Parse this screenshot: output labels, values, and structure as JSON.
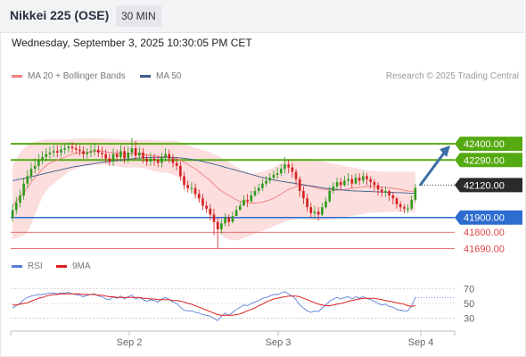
{
  "header": {
    "title": "Nikkei 225 (OSE)",
    "interval": "30 MIN"
  },
  "date_text": "Wednesday, September 3, 2025 10:30:05 PM CET",
  "credit": "Research © 2025 Trading Central",
  "legend": [
    {
      "label": "MA 20 + Bollinger Bands",
      "color": "#f08080"
    },
    {
      "label": "MA 50",
      "color": "#3b5e8c"
    }
  ],
  "rsi_legend": [
    {
      "label": "RSI",
      "color": "#5b7ed8"
    },
    {
      "label": "9MA",
      "color": "#dd1f1f"
    }
  ],
  "colors": {
    "up": "#2f9a1c",
    "down": "#d51f1f",
    "resistance": "#55aa11",
    "support": "#2d6cd0",
    "target": "#e04444",
    "bands": "#fbd3d3",
    "arrow": "#3a6ea5"
  },
  "chart_data": {
    "type": "candlestick",
    "price_range": [
      41650,
      42800
    ],
    "x_labels": [
      "Sep 2",
      "Sep 3",
      "Sep 4"
    ],
    "levels": [
      {
        "value": 42400,
        "label": "42400.00",
        "kind": "resistance"
      },
      {
        "value": 42290,
        "label": "42290.00",
        "kind": "resistance"
      },
      {
        "value": 42120,
        "label": "42120.00",
        "kind": "current"
      },
      {
        "value": 41900,
        "label": "41900.00",
        "kind": "support"
      },
      {
        "value": 41800,
        "label": "41800.00",
        "kind": "target"
      },
      {
        "value": 41690,
        "label": "41690.00",
        "kind": "target"
      }
    ],
    "close": [
      41950,
      42000,
      42050,
      42130,
      42180,
      42230,
      42250,
      42290,
      42310,
      42330,
      42340,
      42350,
      42340,
      42360,
      42370,
      42380,
      42370,
      42360,
      42350,
      42330,
      42340,
      42350,
      42360,
      42340,
      42330,
      42300,
      42280,
      42330,
      42310,
      42350,
      42300,
      42340,
      42370,
      42320,
      42340,
      42300,
      42280,
      42300,
      42290,
      42270,
      42310,
      42330,
      42300,
      42270,
      42250,
      42180,
      42120,
      42100,
      42100,
      42060,
      42030,
      41980,
      41960,
      41920,
      41870,
      41820,
      41860,
      41900,
      41870,
      41910,
      41950,
      41980,
      42020,
      42010,
      42050,
      42080,
      42100,
      42130,
      42150,
      42170,
      42190,
      42200,
      42230,
      42260,
      42240,
      42210,
      42160,
      42080,
      42030,
      41970,
      41930,
      41940,
      41920,
      41970,
      42010,
      42080,
      42110,
      42140,
      42120,
      42150,
      42160,
      42130,
      42170,
      42150,
      42180,
      42160,
      42140,
      42120,
      42090,
      42070,
      42080,
      42050,
      42030,
      41990,
      41970,
      41960,
      41960,
      42020,
      42100
    ],
    "open": [
      41900,
      41950,
      42000,
      42050,
      42130,
      42180,
      42230,
      42250,
      42290,
      42310,
      42330,
      42340,
      42350,
      42340,
      42360,
      42370,
      42380,
      42370,
      42360,
      42350,
      42330,
      42340,
      42350,
      42360,
      42340,
      42330,
      42300,
      42280,
      42330,
      42310,
      42350,
      42300,
      42340,
      42370,
      42320,
      42340,
      42300,
      42280,
      42300,
      42290,
      42270,
      42310,
      42330,
      42300,
      42270,
      42250,
      42180,
      42120,
      42100,
      42100,
      42060,
      42030,
      41980,
      41960,
      41920,
      41870,
      41820,
      41860,
      41900,
      41870,
      41910,
      41950,
      41980,
      42020,
      42010,
      42050,
      42080,
      42100,
      42130,
      42150,
      42170,
      42190,
      42200,
      42230,
      42260,
      42240,
      42210,
      42160,
      42080,
      42030,
      41970,
      41930,
      41940,
      41920,
      41970,
      42010,
      42080,
      42110,
      42140,
      42120,
      42150,
      42160,
      42130,
      42170,
      42150,
      42180,
      42160,
      42140,
      42120,
      42090,
      42070,
      42080,
      42050,
      42030,
      41990,
      41970,
      41960,
      41960,
      42020
    ],
    "high": [
      41990,
      42040,
      42090,
      42170,
      42220,
      42270,
      42300,
      42330,
      42350,
      42370,
      42380,
      42390,
      42390,
      42390,
      42400,
      42410,
      42410,
      42400,
      42390,
      42380,
      42370,
      42390,
      42400,
      42390,
      42380,
      42360,
      42330,
      42370,
      42360,
      42390,
      42380,
      42380,
      42440,
      42420,
      42380,
      42370,
      42330,
      42340,
      42330,
      42320,
      42340,
      42370,
      42360,
      42330,
      42300,
      42280,
      42210,
      42150,
      42140,
      42130,
      42090,
      42060,
      42010,
      41990,
      41960,
      41900,
      41890,
      41930,
      41920,
      41940,
      41980,
      42010,
      42050,
      42060,
      42080,
      42110,
      42130,
      42160,
      42180,
      42200,
      42220,
      42240,
      42260,
      42310,
      42290,
      42270,
      42230,
      42180,
      42110,
      42060,
      42000,
      41980,
      41970,
      42000,
      42040,
      42110,
      42140,
      42170,
      42170,
      42180,
      42200,
      42190,
      42200,
      42200,
      42210,
      42200,
      42180,
      42160,
      42140,
      42110,
      42110,
      42090,
      42070,
      42040,
      42010,
      41990,
      41990,
      42050,
      42130
    ],
    "low": [
      41870,
      41920,
      41970,
      42020,
      42100,
      42150,
      42200,
      42220,
      42260,
      42280,
      42300,
      42310,
      42310,
      42310,
      42330,
      42340,
      42340,
      42330,
      42320,
      42300,
      42300,
      42310,
      42320,
      42310,
      42300,
      42270,
      42250,
      42250,
      42280,
      42280,
      42270,
      42270,
      42310,
      42290,
      42290,
      42270,
      42250,
      42250,
      42250,
      42240,
      42240,
      42280,
      42270,
      42240,
      42220,
      42150,
      42090,
      42070,
      42060,
      42030,
      42000,
      41950,
      41930,
      41880,
      41780,
      41690,
      41790,
      41840,
      41840,
      41860,
      41910,
      41950,
      41980,
      41970,
      42000,
      42040,
      42060,
      42080,
      42110,
      42130,
      42150,
      42160,
      42180,
      42200,
      42200,
      42170,
      42120,
      42040,
      41990,
      41940,
      41900,
      41890,
      41880,
      41910,
      41960,
      42000,
      42060,
      42090,
      42090,
      42110,
      42120,
      42100,
      42120,
      42120,
      42130,
      42120,
      42100,
      42080,
      42050,
      42040,
      42040,
      42010,
      41990,
      41960,
      41940,
      41930,
      41930,
      41950,
      42000
    ],
    "ma20": [
      41980,
      42010,
      42040,
      42070,
      42100,
      42140,
      42170,
      42200,
      42230,
      42250,
      42270,
      42280,
      42290,
      42300,
      42310,
      42320,
      42330,
      42335,
      42340,
      42340,
      42342,
      42345,
      42348,
      42350,
      42350,
      42345,
      42340,
      42338,
      42336,
      42335,
      42333,
      42332,
      42334,
      42333,
      42332,
      42330,
      42325,
      42320,
      42318,
      42315,
      42312,
      42312,
      42310,
      42305,
      42300,
      42290,
      42275,
      42260,
      42245,
      42230,
      42210,
      42190,
      42170,
      42150,
      42125,
      42100,
      42080,
      42065,
      42050,
      42035,
      42020,
      42010,
      42005,
      42000,
      41998,
      41998,
      42000,
      42005,
      42012,
      42020,
      42030,
      42045,
      42060,
      42075,
      42090,
      42100,
      42110,
      42115,
      42118,
      42115,
      42110,
      42105,
      42098,
      42092,
      42088,
      42085,
      42085,
      42086,
      42088,
      42090,
      42094,
      42098,
      42102,
      42105,
      42108,
      42110,
      42110,
      42110,
      42108,
      42106,
      42105,
      42102,
      42098,
      42094,
      42090,
      42085,
      42080,
      42078,
      42080
    ],
    "ma50": [
      42150,
      42155,
      42160,
      42165,
      42170,
      42176,
      42182,
      42188,
      42194,
      42200,
      42206,
      42212,
      42218,
      42224,
      42230,
      42236,
      42242,
      42246,
      42250,
      42254,
      42258,
      42262,
      42266,
      42270,
      42274,
      42277,
      42280,
      42283,
      42286,
      42289,
      42292,
      42295,
      42298,
      42301,
      42303,
      42305,
      42306,
      42307,
      42308,
      42308,
      42308,
      42308,
      42308,
      42307,
      42306,
      42304,
      42301,
      42298,
      42294,
      42290,
      42285,
      42280,
      42274,
      42268,
      42262,
      42255,
      42248,
      42241,
      42234,
      42227,
      42220,
      42213,
      42206,
      42199,
      42192,
      42185,
      42178,
      42172,
      42166,
      42160,
      42155,
      42150,
      42146,
      42142,
      42138,
      42134,
      42130,
      42126,
      42122,
      42118,
      42114,
      42110,
      42106,
      42102,
      42098,
      42095,
      42092,
      42089,
      42087,
      42085,
      42083,
      42081,
      42080,
      42079,
      42078,
      42077,
      42076,
      42075,
      42074,
      42073,
      42072,
      42071,
      42070,
      42069,
      42068,
      42067,
      42066,
      42065,
      42064
    ],
    "bb_upper": [
      42250,
      42300,
      42340,
      42370,
      42390,
      42405,
      42415,
      42420,
      42425,
      42430,
      42430,
      42430,
      42430,
      42430,
      42430,
      42430,
      42432,
      42434,
      42436,
      42436,
      42436,
      42436,
      42436,
      42436,
      42435,
      42434,
      42433,
      42432,
      42430,
      42428,
      42426,
      42424,
      42426,
      42428,
      42428,
      42428,
      42428,
      42426,
      42424,
      42422,
      42420,
      42420,
      42420,
      42420,
      42418,
      42410,
      42400,
      42390,
      42380,
      42370,
      42365,
      42360,
      42350,
      42340,
      42330,
      42320,
      42305,
      42290,
      42275,
      42260,
      42245,
      42230,
      42215,
      42205,
      42200,
      42200,
      42205,
      42210,
      42220,
      42230,
      42240,
      42255,
      42270,
      42285,
      42295,
      42300,
      42300,
      42300,
      42300,
      42298,
      42295,
      42290,
      42285,
      42280,
      42275,
      42270,
      42265,
      42260,
      42255,
      42250,
      42245,
      42240,
      42235,
      42230,
      42225,
      42220,
      42218,
      42216,
      42214,
      42212,
      42210,
      42210,
      42210,
      42210,
      42210,
      42210,
      42210,
      42210,
      42210
    ],
    "bb_lower": [
      41750,
      41760,
      41770,
      41780,
      41800,
      41850,
      41920,
      41980,
      42040,
      42080,
      42110,
      42130,
      42150,
      42170,
      42190,
      42210,
      42220,
      42230,
      42240,
      42245,
      42248,
      42252,
      42255,
      42258,
      42260,
      42258,
      42254,
      42250,
      42246,
      42243,
      42240,
      42238,
      42240,
      42240,
      42238,
      42236,
      42230,
      42220,
      42215,
      42210,
      42205,
      42205,
      42200,
      42190,
      42180,
      42160,
      42130,
      42100,
      42070,
      42040,
      42010,
      41980,
      41950,
      41920,
      41880,
      41830,
      41780,
      41760,
      41750,
      41745,
      41745,
      41750,
      41760,
      41770,
      41780,
      41790,
      41800,
      41810,
      41820,
      41830,
      41840,
      41850,
      41860,
      41870,
      41880,
      41885,
      41890,
      41890,
      41890,
      41888,
      41886,
      41884,
      41882,
      41882,
      41884,
      41886,
      41888,
      41890,
      41895,
      41900,
      41905,
      41910,
      41915,
      41920,
      41925,
      41930,
      41932,
      41934,
      41935,
      41936,
      41937,
      41938,
      41938,
      41938,
      41938,
      41938,
      41938,
      41938,
      41938
    ],
    "rsi_range": [
      20,
      80
    ],
    "rsi_ticks": [
      70,
      50,
      30
    ],
    "rsi": [
      44,
      47,
      50,
      55,
      58,
      60,
      61,
      62,
      62,
      63,
      64,
      64,
      63,
      64,
      64,
      65,
      63,
      62,
      61,
      59,
      61,
      62,
      63,
      60,
      59,
      56,
      55,
      59,
      57,
      60,
      56,
      59,
      61,
      56,
      58,
      55,
      53,
      55,
      54,
      52,
      56,
      58,
      55,
      52,
      50,
      45,
      41,
      40,
      40,
      38,
      37,
      35,
      34,
      33,
      30,
      27,
      33,
      37,
      34,
      38,
      42,
      45,
      48,
      47,
      50,
      52,
      54,
      57,
      58,
      60,
      62,
      62,
      64,
      66,
      63,
      60,
      55,
      48,
      44,
      40,
      38,
      40,
      39,
      44,
      48,
      53,
      56,
      58,
      56,
      58,
      59,
      56,
      59,
      57,
      59,
      57,
      55,
      53,
      50,
      48,
      49,
      46,
      45,
      42,
      41,
      40,
      40,
      47,
      58
    ],
    "rsi_ma": [
      48,
      48,
      49,
      50,
      51,
      53,
      55,
      57,
      58,
      60,
      61,
      62,
      62,
      63,
      63,
      63,
      63,
      63,
      63,
      62,
      62,
      62,
      62,
      61,
      61,
      60,
      59,
      59,
      58,
      58,
      58,
      58,
      58,
      58,
      58,
      57,
      57,
      56,
      56,
      55,
      55,
      55,
      55,
      54,
      54,
      53,
      52,
      50,
      49,
      47,
      45,
      43,
      41,
      39,
      37,
      35,
      34,
      34,
      34,
      34,
      35,
      36,
      38,
      40,
      42,
      44,
      47,
      49,
      52,
      54,
      56,
      57,
      58,
      59,
      60,
      60,
      60,
      59,
      57,
      55,
      53,
      51,
      49,
      48,
      47,
      47,
      48,
      49,
      50,
      51,
      53,
      54,
      55,
      56,
      57,
      57,
      57,
      57,
      56,
      55,
      54,
      53,
      52,
      51,
      50,
      49,
      47,
      46,
      47
    ]
  }
}
